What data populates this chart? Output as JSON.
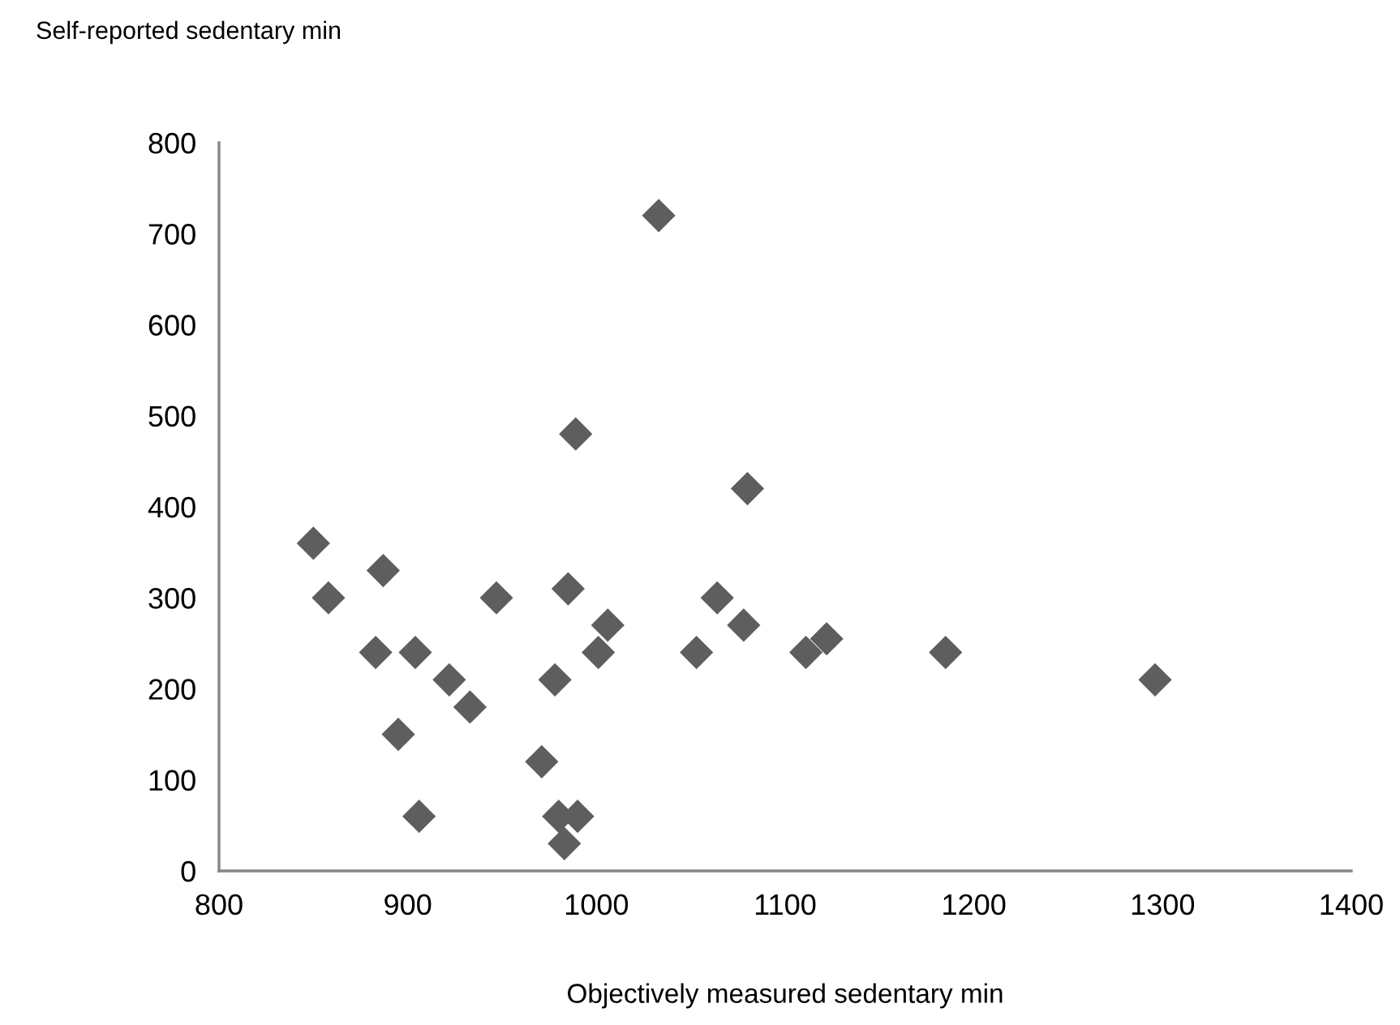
{
  "chart_data": {
    "type": "scatter",
    "ylabel": "Self-reported sedentary min",
    "xlabel": "Objectively measured sedentary min",
    "marker": "diamond",
    "grid": false,
    "xlim": [
      800,
      1400
    ],
    "xticks": [
      800,
      900,
      1000,
      1100,
      1200,
      1300,
      1400
    ],
    "ylim": [
      0,
      800
    ],
    "yticks": [
      0,
      100,
      200,
      300,
      400,
      500,
      600,
      700,
      800
    ],
    "series": [
      {
        "color": "#5e5e5e",
        "x": [
          850,
          858,
          887,
          883,
          904,
          895,
          906,
          922,
          933,
          947,
          971,
          978,
          980,
          990,
          983,
          985,
          989,
          1001,
          1006,
          1033,
          1053,
          1064,
          1078,
          1080,
          1111,
          1122,
          1185,
          1296
        ],
        "values": [
          360,
          300,
          330,
          240,
          240,
          150,
          60,
          210,
          180,
          300,
          120,
          210,
          60,
          60,
          30,
          310,
          480,
          240,
          270,
          720,
          240,
          300,
          270,
          420,
          240,
          255,
          240,
          210
        ]
      }
    ]
  }
}
